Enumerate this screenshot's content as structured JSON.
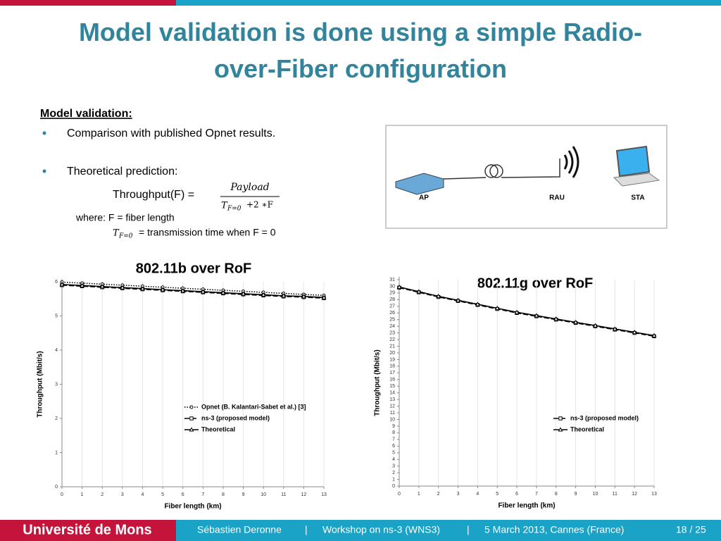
{
  "header": {
    "title": "Model validation is done using a simple Radio-over-Fiber configuration"
  },
  "body": {
    "heading": "Model validation:",
    "bullets": [
      "Comparison with published Opnet results.",
      "Theoretical prediction:"
    ],
    "formula": {
      "lhs": "Throughput(F) =",
      "numerator": "Payload",
      "denominator_symbol": "T",
      "subscript": "F=0",
      "denominator_rest": "+2 ∗F"
    },
    "where": {
      "line1": "where: F = fiber length",
      "line2": "= transmission time when F = 0"
    }
  },
  "diagram": {
    "labels": [
      "AP",
      "RAU",
      "STA"
    ]
  },
  "chart_data": [
    {
      "type": "line",
      "title": "802.11b over RoF",
      "x_label": "Fiber length (km)",
      "y_label": "Throughput (Mbit/s)",
      "x": [
        0,
        1,
        2,
        3,
        4,
        5,
        6,
        7,
        8,
        9,
        10,
        11,
        12,
        13
      ],
      "xlim": [
        0,
        13
      ],
      "xticks": [
        0,
        1,
        2,
        3,
        4,
        5,
        6,
        7,
        8,
        9,
        10,
        11,
        12,
        13
      ],
      "ylim": [
        0,
        6
      ],
      "yticks": [
        0,
        1,
        2,
        3,
        4,
        5,
        6
      ],
      "grid": true,
      "legend": "lower right",
      "series": [
        {
          "name": "Opnet (B. Kalantari-Sabet et al.) [3]",
          "color": "#000000",
          "line_style": "dotted",
          "marker": "circle",
          "values": [
            5.99,
            5.96,
            5.93,
            5.9,
            5.87,
            5.84,
            5.81,
            5.78,
            5.75,
            5.72,
            5.69,
            5.66,
            5.63,
            5.6
          ]
        },
        {
          "name": "ns-3 (proposed model)",
          "color": "#000000",
          "line_style": "dashed",
          "marker": "square",
          "values": [
            5.9,
            5.87,
            5.84,
            5.81,
            5.78,
            5.75,
            5.72,
            5.69,
            5.66,
            5.63,
            5.6,
            5.57,
            5.55,
            5.52
          ]
        },
        {
          "name": "Theoretical",
          "color": "#000000",
          "line_style": "solid",
          "marker": "triangle",
          "values": [
            5.92,
            5.89,
            5.86,
            5.83,
            5.8,
            5.77,
            5.74,
            5.71,
            5.68,
            5.65,
            5.62,
            5.59,
            5.57,
            5.54
          ]
        }
      ]
    },
    {
      "type": "line",
      "title": "802.11g over RoF",
      "x_label": "Fiber length (km)",
      "y_label": "Throughput (Mbit/s)",
      "x": [
        0,
        1,
        2,
        3,
        4,
        5,
        6,
        7,
        8,
        9,
        10,
        11,
        12,
        13
      ],
      "xlim": [
        0,
        13
      ],
      "xticks": [
        0,
        1,
        2,
        3,
        4,
        5,
        6,
        7,
        8,
        9,
        10,
        11,
        12,
        13
      ],
      "ylim": [
        0,
        31
      ],
      "yticks": [
        0,
        1,
        2,
        3,
        4,
        5,
        6,
        7,
        8,
        9,
        10,
        11,
        12,
        13,
        14,
        15,
        16,
        17,
        18,
        19,
        20,
        21,
        22,
        23,
        24,
        25,
        26,
        27,
        28,
        29,
        30,
        31
      ],
      "grid": true,
      "legend": "lower right",
      "series": [
        {
          "name": "ns-3 (proposed model)",
          "color": "#000000",
          "line_style": "dashed",
          "marker": "square",
          "values": [
            29.8,
            29.1,
            28.4,
            27.8,
            27.2,
            26.6,
            26.0,
            25.5,
            25.0,
            24.5,
            24.0,
            23.5,
            23.0,
            22.5
          ]
        },
        {
          "name": "Theoretical",
          "color": "#000000",
          "line_style": "solid",
          "marker": "triangle",
          "values": [
            29.9,
            29.2,
            28.5,
            27.9,
            27.3,
            26.7,
            26.1,
            25.6,
            25.1,
            24.6,
            24.1,
            23.6,
            23.1,
            22.6
          ]
        }
      ]
    }
  ],
  "footer": {
    "university": "Université de Mons",
    "author": "Sébastien Deronne",
    "separator": "|",
    "event": "Workshop on ns-3 (WNS3)",
    "date": "5 March 2013, Cannes (France)",
    "page": "18 / 25"
  }
}
